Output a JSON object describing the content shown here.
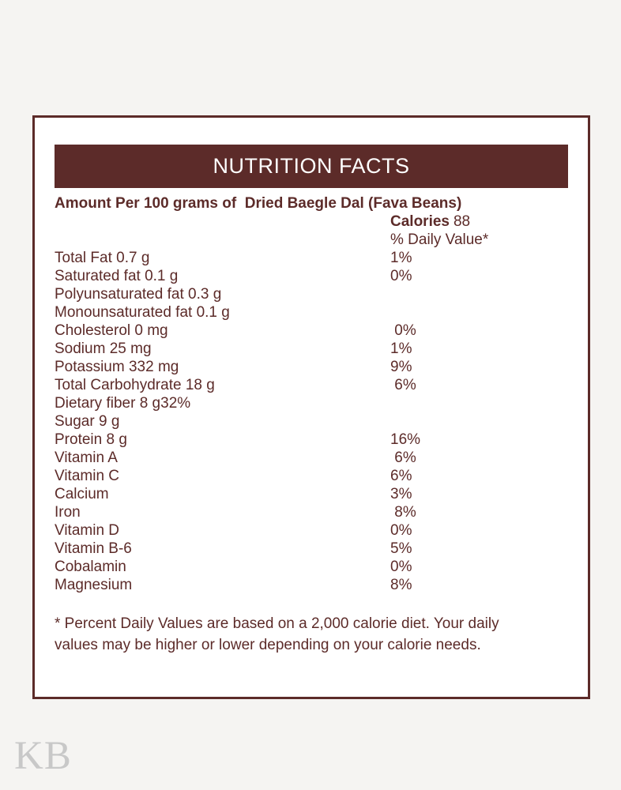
{
  "page": {
    "watermark": "KB"
  },
  "label": {
    "title": "NUTRITION FACTS",
    "amount_line": "Amount Per 100 grams of  Dried Baegle Dal (Fava Beans)",
    "calories_label": "Calories",
    "calories_value": "88",
    "daily_value_header": "% Daily Value*",
    "rows": [
      {
        "label": "Total Fat 0.7 g",
        "value": "1%",
        "inline": false
      },
      {
        "label": "Saturated fat 0.1 g",
        "value": "0%",
        "inline": false
      },
      {
        "label": "Polyunsaturated fat 0.3 g",
        "value": "",
        "inline": false
      },
      {
        "label": "Monounsaturated fat 0.1 g",
        "value": "",
        "inline": false
      },
      {
        "label": "Cholesterol 0 mg",
        "value": " 0%",
        "inline": false
      },
      {
        "label": "Sodium 25 mg",
        "value": "1%",
        "inline": false
      },
      {
        "label": "Potassium 332 mg",
        "value": "9%",
        "inline": false
      },
      {
        "label": "Total Carbohydrate 18 g",
        "value": " 6%",
        "inline": false
      },
      {
        "label": "Dietary fiber 8 g",
        "value": "32%",
        "inline": true
      },
      {
        "label": "Sugar 9 g",
        "value": "",
        "inline": false
      },
      {
        "label": "Protein 8 g",
        "value": "16%",
        "inline": false
      },
      {
        "label": "Vitamin A",
        "value": " 6%",
        "inline": false
      },
      {
        "label": "Vitamin C",
        "value": "6%",
        "inline": false
      },
      {
        "label": "Calcium",
        "value": "3%",
        "inline": false
      },
      {
        "label": "Iron",
        "value": " 8%",
        "inline": false
      },
      {
        "label": "Vitamin D",
        "value": "0%",
        "inline": false
      },
      {
        "label": "Vitamin B-6",
        "value": "5%",
        "inline": false
      },
      {
        "label": "Cobalamin",
        "value": "0%",
        "inline": false
      },
      {
        "label": "Magnesium",
        "value": "8%",
        "inline": false
      }
    ],
    "footnote_lines": [
      "* Percent Daily Values are based on a 2,000 calorie diet. Your daily",
      "values may be higher or lower depending on your calorie needs."
    ]
  },
  "colors": {
    "brand_maroon": "#5c2b29",
    "page_background": "#f5f4f2",
    "card_background": "#ffffff",
    "header_text": "#ffffff",
    "watermark_gray": "#c8c8c8"
  }
}
